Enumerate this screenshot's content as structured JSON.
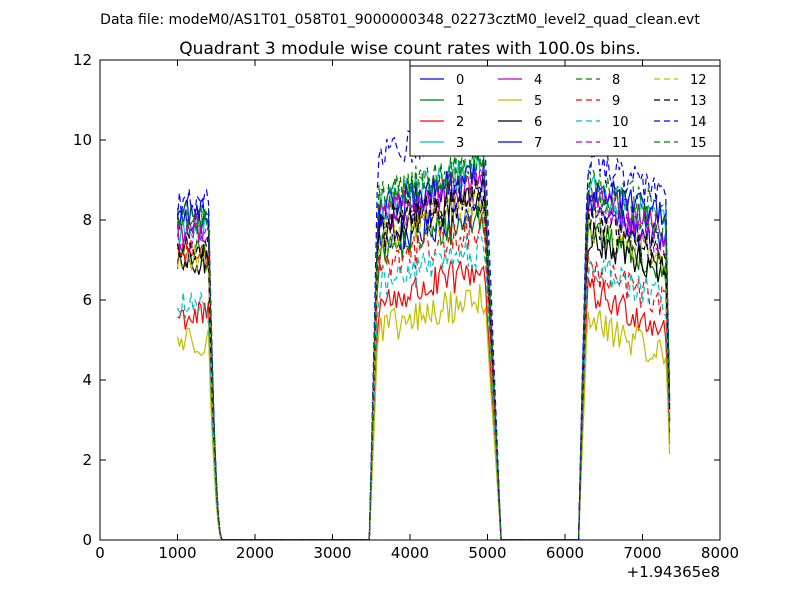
{
  "header": {
    "datafile": "Data file: modeM0/AS1T01_058T01_9000000348_02273cztM0_level2_quad_clean.evt",
    "title": "Quadrant 3 module wise count rates with 100.0s bins."
  },
  "chart_data": {
    "type": "line",
    "title": "Quadrant 3 module wise count rates with 100.0s bins.",
    "xlabel": "",
    "ylabel": "",
    "x_offset_label": "+1.94365e8",
    "xlim": [
      0,
      8000
    ],
    "ylim": [
      0,
      12
    ],
    "xticks": [
      0,
      1000,
      2000,
      3000,
      4000,
      5000,
      6000,
      7000,
      8000
    ],
    "yticks": [
      0,
      2,
      4,
      6,
      8,
      10,
      12
    ],
    "grid": false,
    "legend_position": "top-right",
    "legend_columns": 4,
    "segments": [
      {
        "x_start": 1000,
        "x_step": 25,
        "count": 23
      },
      {
        "x_start": 1575,
        "x_step": 25,
        "count": 1
      },
      {
        "x_start": 3475,
        "x_step": 25,
        "count": 1
      },
      {
        "x_start": 3500,
        "x_step": 25,
        "count": 71
      },
      {
        "x_start": 5175,
        "x_step": 25,
        "count": 1
      },
      {
        "x_start": 6175,
        "x_step": 25,
        "count": 1
      },
      {
        "x_start": 6200,
        "x_step": 25,
        "count": 47
      }
    ],
    "series": [
      {
        "name": "0",
        "color": "#0000ff",
        "dash": "solid",
        "level1": 8.0,
        "level2": 7.4,
        "level3": 8.3
      },
      {
        "name": "1",
        "color": "#008000",
        "dash": "solid",
        "level1": 7.1,
        "level2": 7.2,
        "level3": 7.7
      },
      {
        "name": "2",
        "color": "#ff0000",
        "dash": "solid",
        "level1": 5.6,
        "level2": 5.9,
        "level3": 6.2
      },
      {
        "name": "3",
        "color": "#00bfbf",
        "dash": "solid",
        "level1": 7.7,
        "level2": 8.4,
        "level3": 8.8
      },
      {
        "name": "4",
        "color": "#bf00bf",
        "dash": "solid",
        "level1": 7.8,
        "level2": 8.1,
        "level3": 8.6
      },
      {
        "name": "5",
        "color": "#bfbf00",
        "dash": "solid",
        "level1": 5.0,
        "level2": 5.2,
        "level3": 5.5
      },
      {
        "name": "6",
        "color": "#000000",
        "dash": "solid",
        "level1": 6.9,
        "level2": 7.7,
        "level3": 7.6
      },
      {
        "name": "7",
        "color": "#0000ff",
        "dash": "solid",
        "level1": 8.2,
        "level2": 8.2,
        "level3": 8.9
      },
      {
        "name": "8",
        "color": "#008000",
        "dash": "dashed",
        "level1": 8.1,
        "level2": 8.6,
        "level3": 9.1
      },
      {
        "name": "9",
        "color": "#ff0000",
        "dash": "dashed",
        "level1": 7.2,
        "level2": 6.9,
        "level3": 6.8
      },
      {
        "name": "10",
        "color": "#00bfbf",
        "dash": "dashed",
        "level1": 5.8,
        "level2": 6.4,
        "level3": 6.9
      },
      {
        "name": "11",
        "color": "#bf00bf",
        "dash": "dashed",
        "level1": 7.6,
        "level2": 8.0,
        "level3": 8.3
      },
      {
        "name": "12",
        "color": "#bfbf00",
        "dash": "dashed",
        "level1": 7.0,
        "level2": 7.6,
        "level3": 7.9
      },
      {
        "name": "13",
        "color": "#000000",
        "dash": "dashed",
        "level1": 7.3,
        "level2": 7.9,
        "level3": 8.0
      },
      {
        "name": "14",
        "color": "#0000ff",
        "dash": "dashed",
        "level1": 8.4,
        "level2": 9.6,
        "level3": 9.5
      },
      {
        "name": "15",
        "color": "#008000",
        "dash": "dashed",
        "level1": 8.0,
        "level2": 8.5,
        "level3": 8.7
      }
    ]
  }
}
